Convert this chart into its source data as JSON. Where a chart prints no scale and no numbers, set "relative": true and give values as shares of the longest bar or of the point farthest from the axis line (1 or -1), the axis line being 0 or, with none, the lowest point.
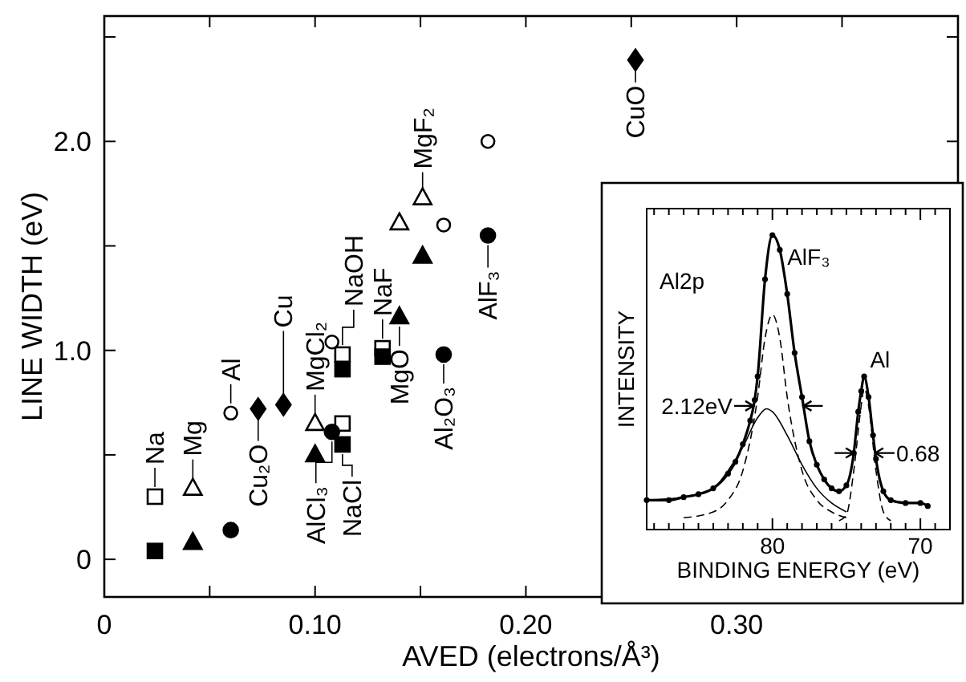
{
  "chart_data": [
    {
      "type": "scatter",
      "xlabel": "AVED (electrons/Å³)",
      "ylabel": "LINE WIDTH (eV)",
      "xlim": [
        0,
        0.405
      ],
      "ylim": [
        -0.18,
        2.6
      ],
      "xticks": [
        {
          "value": 0,
          "label": "0"
        },
        {
          "value": 0.05,
          "label": null
        },
        {
          "value": 0.1,
          "label": "0.10"
        },
        {
          "value": 0.15,
          "label": null
        },
        {
          "value": 0.2,
          "label": "0.20"
        },
        {
          "value": 0.25,
          "label": null
        },
        {
          "value": 0.3,
          "label": "0.30"
        },
        {
          "value": 0.35,
          "label": null
        }
      ],
      "yticks": [
        {
          "value": 0,
          "label": "0"
        },
        {
          "value": 0.5,
          "label": null
        },
        {
          "value": 1,
          "label": "1.0"
        },
        {
          "value": 1.5,
          "label": null
        },
        {
          "value": 2,
          "label": "2.0"
        },
        {
          "value": 2.5,
          "label": null
        }
      ],
      "grid": false,
      "series": [
        {
          "marker": "square",
          "color": "#000000",
          "x": [
            0.024,
            0.113,
            0.113,
            0.132
          ],
          "values": [
            0.3,
            0.98,
            0.65,
            1.01
          ]
        },
        {
          "marker": "square",
          "color": "#000000",
          "x": [
            0.024,
            0.113,
            0.113,
            0.132
          ],
          "values": [
            0.04,
            0.91,
            0.55,
            0.97
          ]
        },
        {
          "marker": "triangle",
          "color": "#000000",
          "x": [
            0.042,
            0.1,
            0.14,
            0.151
          ],
          "values": [
            0.34,
            0.65,
            1.61,
            1.73
          ]
        },
        {
          "marker": "triangle",
          "color": "#000000",
          "x": [
            0.042,
            0.1,
            0.14,
            0.151
          ],
          "values": [
            0.08,
            0.5,
            1.16,
            1.45
          ]
        },
        {
          "marker": "circle",
          "color": "#000000",
          "x": [
            0.06,
            0.108,
            0.161,
            0.182
          ],
          "values": [
            0.7,
            1.04,
            1.6,
            2.0
          ]
        },
        {
          "marker": "circle",
          "color": "#000000",
          "x": [
            0.06,
            0.108,
            0.161,
            0.182
          ],
          "values": [
            0.14,
            0.61,
            0.98,
            1.55
          ]
        },
        {
          "marker": "diamond",
          "color": "#000000",
          "x": [
            0.073,
            0.085,
            0.252
          ],
          "values": [
            0.72,
            0.74,
            2.39
          ]
        }
      ],
      "annotations": [
        {
          "text": "Na",
          "x": 0.024,
          "y": 0.3
        },
        {
          "text": "Mg",
          "x": 0.042,
          "y": 0.34
        },
        {
          "text": "Al",
          "x": 0.06,
          "y": 0.7
        },
        {
          "text": "Cu₂O",
          "x": 0.073,
          "y": 0.72
        },
        {
          "text": "Cu",
          "x": 0.085,
          "y": 0.74
        },
        {
          "text": "AlCl₃",
          "x": 0.108,
          "y": 0.61
        },
        {
          "text": "MgCl₂",
          "x": 0.1,
          "y": 0.65
        },
        {
          "text": "NaOH",
          "x": 0.113,
          "y": 0.98
        },
        {
          "text": "NaCl",
          "x": 0.113,
          "y": 0.55
        },
        {
          "text": "NaF",
          "x": 0.132,
          "y": 1.01
        },
        {
          "text": "MgO",
          "x": 0.14,
          "y": 1.16
        },
        {
          "text": "MgF₂",
          "x": 0.151,
          "y": 1.73
        },
        {
          "text": "Al₂O₃",
          "x": 0.161,
          "y": 0.98
        },
        {
          "text": "AlF₃",
          "x": 0.182,
          "y": 1.55
        },
        {
          "text": "CuO",
          "x": 0.252,
          "y": 2.39
        }
      ]
    },
    {
      "type": "line",
      "relative": true,
      "xlabel": "BINDING ENERGY (eV)",
      "ylabel": "INTENSITY",
      "xlim": [
        88.5,
        68
      ],
      "xticks": [
        {
          "value": 69,
          "label": null
        },
        {
          "value": 70,
          "label": "70"
        },
        {
          "value": 71,
          "label": null
        },
        {
          "value": 72,
          "label": null
        },
        {
          "value": 73,
          "label": null
        },
        {
          "value": 74,
          "label": null
        },
        {
          "value": 75,
          "label": null
        },
        {
          "value": 76,
          "label": null
        },
        {
          "value": 77,
          "label": null
        },
        {
          "value": 78,
          "label": null
        },
        {
          "value": 79,
          "label": null
        },
        {
          "value": 80,
          "label": "80"
        },
        {
          "value": 81,
          "label": null
        },
        {
          "value": 82,
          "label": null
        },
        {
          "value": 83,
          "label": null
        },
        {
          "value": 84,
          "label": null
        },
        {
          "value": 85,
          "label": null
        },
        {
          "value": 86,
          "label": null
        },
        {
          "value": 87,
          "label": null
        },
        {
          "value": 88,
          "label": null
        }
      ],
      "series": [
        {
          "color": "#000000",
          "marker": "circle",
          "line_style": "solid",
          "x": [
            88.5,
            87,
            86,
            85,
            84,
            83,
            82.5,
            82,
            81.5,
            81.2,
            81,
            80.5,
            80,
            79.5,
            79,
            78.5,
            78,
            77.5,
            77,
            76.5,
            76,
            75.5,
            75,
            74.5,
            74.2,
            74,
            73.8,
            73.5,
            73.2,
            73,
            72.5,
            72,
            71,
            70,
            69.5
          ],
          "values": [
            0.1,
            0.1,
            0.11,
            0.12,
            0.14,
            0.19,
            0.23,
            0.29,
            0.37,
            0.44,
            0.52,
            0.85,
            1.0,
            0.95,
            0.8,
            0.6,
            0.45,
            0.3,
            0.22,
            0.17,
            0.14,
            0.13,
            0.15,
            0.26,
            0.4,
            0.47,
            0.52,
            0.45,
            0.32,
            0.24,
            0.13,
            0.1,
            0.09,
            0.09,
            0.08
          ]
        },
        {
          "color": "#000000",
          "line_style": "dashed",
          "x": [
            86,
            84,
            83,
            82,
            81,
            80.5,
            80,
            79.5,
            79,
            78,
            77,
            76,
            75
          ],
          "values": [
            0.04,
            0.06,
            0.1,
            0.2,
            0.45,
            0.65,
            0.73,
            0.65,
            0.45,
            0.2,
            0.1,
            0.06,
            0.04
          ]
        },
        {
          "color": "#000000",
          "line_style": "solid",
          "x": [
            88.5,
            86,
            84,
            83,
            82,
            81,
            80.4,
            80,
            79,
            78,
            77,
            76,
            75
          ],
          "values": [
            0.1,
            0.11,
            0.14,
            0.2,
            0.28,
            0.38,
            0.41,
            0.4,
            0.32,
            0.22,
            0.14,
            0.09,
            0.06
          ]
        },
        {
          "color": "#000000",
          "line_style": "dashed",
          "x": [
            75.5,
            75,
            74.5,
            74,
            73.8,
            73.5,
            73,
            72.5,
            72
          ],
          "values": [
            0.03,
            0.05,
            0.2,
            0.42,
            0.48,
            0.42,
            0.2,
            0.06,
            0.03
          ]
        }
      ],
      "annotations": [
        "Al2p",
        {
          "text": "AlF₃",
          "x": 79,
          "y": 0.9
        },
        {
          "text": "Al",
          "x": 73.4,
          "y": 0.55
        },
        {
          "text": "2.12eV",
          "x": 81.4,
          "y": 0.42
        },
        {
          "text": "0.68",
          "x": 72.9,
          "y": 0.26
        }
      ]
    }
  ]
}
